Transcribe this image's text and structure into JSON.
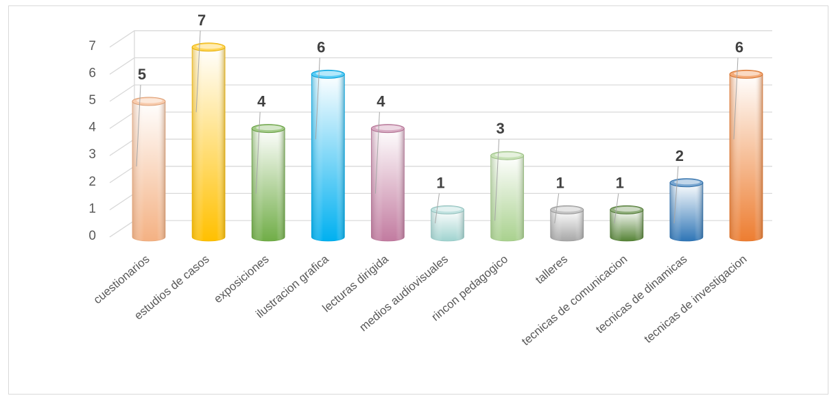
{
  "chart_data": {
    "type": "bar",
    "style": "3d-cylinder",
    "categories": [
      "cuestionarios",
      "estudios de casos",
      "exposiciones",
      "ilustracion grafica",
      "lecturas dirigida",
      "medios audiovisuales",
      "rincon pedagogico",
      "talleres",
      "tecnicas de comunicacion",
      "tecnicas de dinamicas",
      "tecnicas de investigacion"
    ],
    "values": [
      5,
      7,
      4,
      6,
      4,
      1,
      3,
      1,
      1,
      2,
      6
    ],
    "colors": [
      "#f4b183",
      "#ffc000",
      "#70ad47",
      "#00b0f0",
      "#c27ba0",
      "#9fd3cf",
      "#a9d18e",
      "#a6a6a6",
      "#548235",
      "#2e75b6",
      "#ed7d31"
    ],
    "yticks": [
      0,
      1,
      2,
      3,
      4,
      5,
      6,
      7
    ],
    "ylim": [
      0,
      7
    ],
    "grid": true,
    "data_labels": true,
    "legend": "none"
  }
}
